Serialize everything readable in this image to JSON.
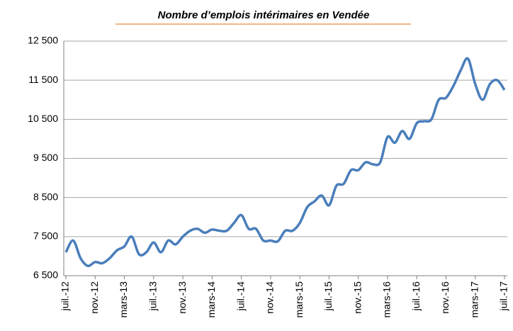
{
  "chart_data": {
    "type": "line",
    "title": "Nombre d’emplois intérimaires en Vendée",
    "categories": [
      "juil.-12",
      null,
      null,
      null,
      "nov.-12",
      null,
      null,
      null,
      "mars-13",
      null,
      null,
      null,
      "juil.-13",
      null,
      null,
      null,
      "nov.-13",
      null,
      null,
      null,
      "mars-14",
      null,
      null,
      null,
      "juil.-14",
      null,
      null,
      null,
      "nov.-14",
      null,
      null,
      null,
      "mars-15",
      null,
      null,
      null,
      "juil.-15",
      null,
      null,
      null,
      "nov.-15",
      null,
      null,
      null,
      "mars-16",
      null,
      null,
      null,
      "juil.-16",
      null,
      null,
      null,
      "nov.-16",
      null,
      null,
      null,
      "mars-17",
      null,
      null,
      null,
      "juil.-17"
    ],
    "series": [
      {
        "name": "Nombre d’emplois intérimaires",
        "color": "#4a7ebb",
        "values": [
          7100,
          7400,
          6950,
          6750,
          6850,
          6820,
          6950,
          7150,
          7250,
          7500,
          7050,
          7100,
          7350,
          7100,
          7400,
          7300,
          7500,
          7650,
          7700,
          7600,
          7680,
          7650,
          7650,
          7850,
          8050,
          7700,
          7700,
          7400,
          7400,
          7380,
          7650,
          7650,
          7850,
          8250,
          8400,
          8550,
          8300,
          8800,
          8850,
          9200,
          9200,
          9400,
          9350,
          9400,
          10050,
          9900,
          10200,
          10000,
          10400,
          10450,
          10500,
          11000,
          11050,
          11350,
          11750,
          12050,
          11400,
          11000,
          11400,
          11500,
          11250
        ]
      }
    ],
    "ylim": [
      6500,
      12500
    ],
    "yticks": [
      {
        "value": 6500,
        "label": "6 500"
      },
      {
        "value": 7500,
        "label": "7 500"
      },
      {
        "value": 8500,
        "label": "8 500"
      },
      {
        "value": 9500,
        "label": "9 500"
      },
      {
        "value": 10500,
        "label": "10 500"
      },
      {
        "value": 11500,
        "label": "11 500"
      },
      {
        "value": 12500,
        "label": "12 500"
      }
    ],
    "grid": true
  }
}
